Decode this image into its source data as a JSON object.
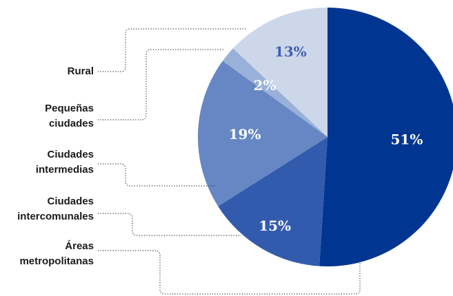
{
  "chart_data": {
    "type": "pie",
    "title": "",
    "unit": "%",
    "slices": [
      {
        "label": "Áreas metropolitanas",
        "label_lines": [
          "Áreas",
          "metropolitanas"
        ],
        "value": 51,
        "display": "51%",
        "color": "#003591",
        "text_color": "#ffffff"
      },
      {
        "label": "Ciudades intercomunales",
        "label_lines": [
          "Ciudades",
          "intercomunales"
        ],
        "value": 15,
        "display": "15%",
        "color": "#335bad",
        "text_color": "#ffffff"
      },
      {
        "label": "Ciudades intermedias",
        "label_lines": [
          "Ciudades",
          "intermedias"
        ],
        "value": 19,
        "display": "19%",
        "color": "#6687c4",
        "text_color": "#ffffff"
      },
      {
        "label": "Pequeñas ciudades",
        "label_lines": [
          "Pequeñas",
          "ciudades"
        ],
        "value": 2,
        "display": "2%",
        "color": "#99b0d8",
        "text_color": "#ffffff"
      },
      {
        "label": "Rural",
        "label_lines": [
          "Rural"
        ],
        "value": 13,
        "display": "13%",
        "color": "#cdd7ea",
        "text_color": "#3f5fb0"
      }
    ]
  }
}
